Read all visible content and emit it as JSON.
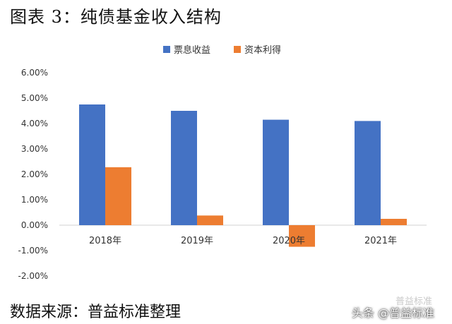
{
  "page": {
    "title": "图表 3：纯债基金收入结构",
    "source": "数据来源：普益标准整理",
    "watermark_faint": "普益标准",
    "watermark": "头条 @普益标准"
  },
  "chart_data": {
    "type": "bar",
    "title": "",
    "xlabel": "",
    "ylabel": "",
    "categories": [
      "2018年",
      "2019年",
      "2020年",
      "2021年"
    ],
    "series": [
      {
        "name": "票息收益",
        "color": "#4472C4",
        "values": [
          4.75,
          4.5,
          4.15,
          4.1
        ]
      },
      {
        "name": "资本利得",
        "color": "#ED7D31",
        "values": [
          2.28,
          0.38,
          -0.85,
          0.25
        ]
      }
    ],
    "ylim": [
      -2,
      6
    ],
    "yticks": [
      -2,
      -1,
      0,
      1,
      2,
      3,
      4,
      5,
      6
    ],
    "ytick_labels": [
      "-2.00%",
      "-1.00%",
      "0.00%",
      "1.00%",
      "2.00%",
      "3.00%",
      "4.00%",
      "5.00%",
      "6.00%"
    ],
    "grid": false,
    "legend_position": "top-center"
  }
}
